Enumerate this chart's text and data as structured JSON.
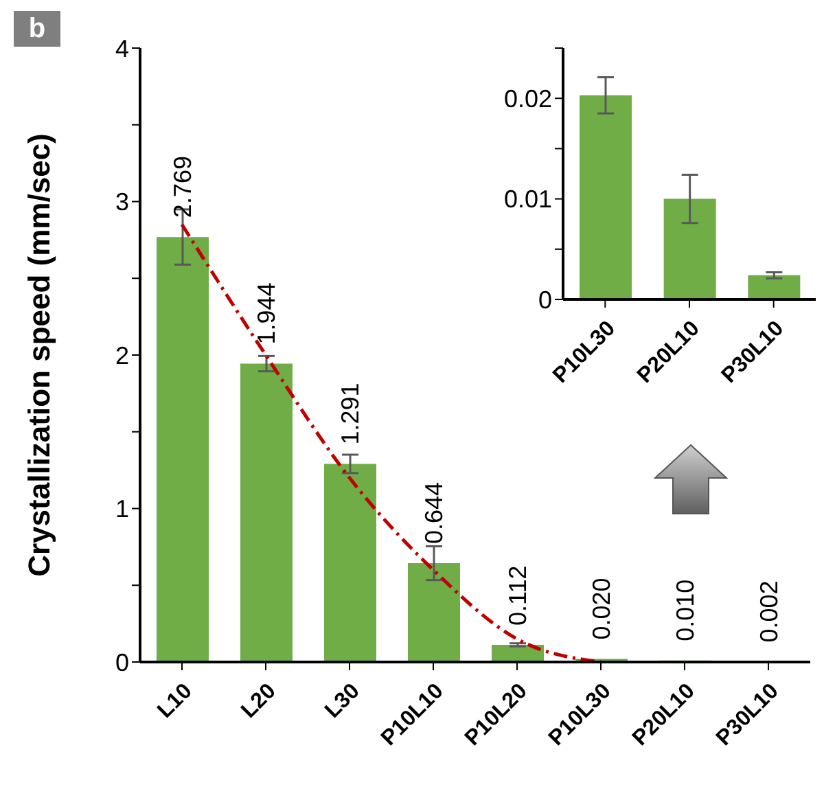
{
  "chart_data": [
    {
      "type": "bar",
      "ylabel": "Crystallization speed (mm/sec)",
      "annotations": [
        "b"
      ],
      "categories": [
        "L10",
        "L20",
        "L30",
        "P10L10",
        "P10L20",
        "P10L30",
        "P20L10",
        "P30L10"
      ],
      "series": [
        {
          "color": "#70ad47",
          "values": [
            2.769,
            1.944,
            1.291,
            0.644,
            0.112,
            0.02,
            0.01,
            0.002
          ],
          "errors": [
            0.18,
            0.05,
            0.06,
            0.11,
            0.01,
            null,
            null,
            null
          ],
          "value_labels": [
            "2.769",
            "1.944",
            "1.291",
            "0.644",
            "0.112",
            "0.020",
            "0.010",
            "0.002"
          ]
        },
        {
          "type": "line",
          "color": "#c00000",
          "line_style": "dashed",
          "marker": "none",
          "values": [
            2.85,
            2.0,
            1.2,
            0.6,
            0.15,
            0.0,
            null,
            null
          ]
        }
      ],
      "ylim": [
        0,
        4
      ],
      "yticks": [
        0,
        {
          "value": 0.5,
          "label": null
        },
        1,
        {
          "value": 1.5,
          "label": null
        },
        2,
        {
          "value": 2.5,
          "label": null
        },
        3,
        {
          "value": 3.5,
          "label": null
        },
        4
      ]
    },
    {
      "type": "bar",
      "categories": [
        "P10L30",
        "P20L10",
        "P30L10"
      ],
      "series": [
        {
          "color": "#70ad47",
          "values": [
            0.0203,
            0.01,
            0.0024
          ],
          "errors": [
            0.0018,
            0.0024,
            0.0003
          ]
        }
      ],
      "ylim": [
        0,
        0.025
      ],
      "yticks": [
        0,
        {
          "value": 0.005,
          "label": null
        },
        0.01,
        {
          "value": 0.015,
          "label": null
        },
        0.02,
        {
          "value": 0.025,
          "label": null
        }
      ]
    }
  ]
}
